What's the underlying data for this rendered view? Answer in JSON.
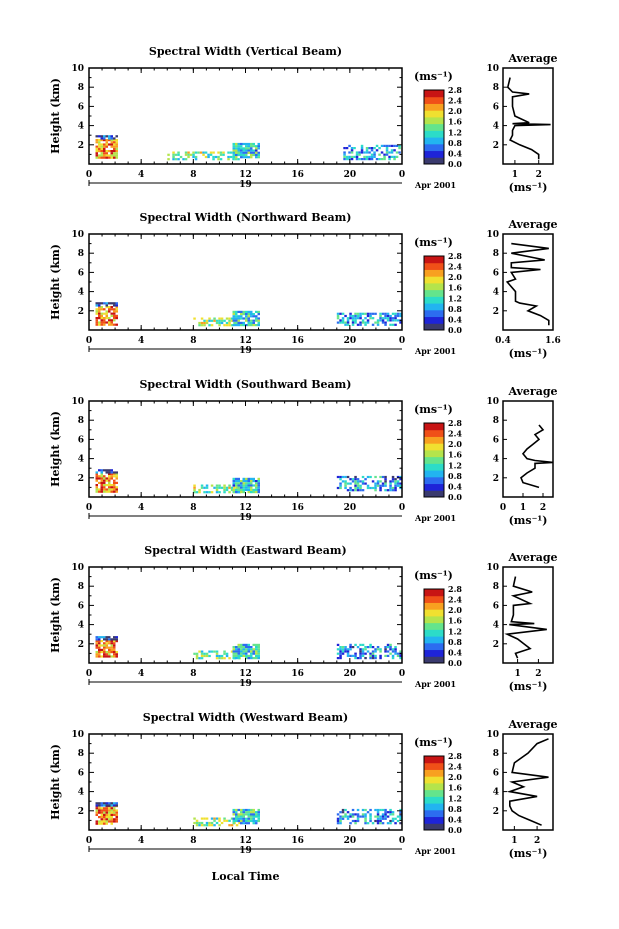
{
  "figure": {
    "xlabel": "Local Time",
    "date_label": "Apr 2001",
    "day_label": "19",
    "colorbar_unit": "(ms⁻¹)",
    "colorbar_ticks": [
      "0.0",
      "0.4",
      "0.8",
      "1.2",
      "1.6",
      "2.0",
      "2.4",
      "2.8"
    ],
    "average_title": "Average",
    "average_xlabel": "(ms⁻¹)"
  },
  "colors": {
    "colormap": [
      "#3a3a6e",
      "#1e24d8",
      "#2c6cf0",
      "#22b4f0",
      "#2cdcc8",
      "#64e48c",
      "#b4e44c",
      "#f0e030",
      "#f8a020",
      "#f05018",
      "#c81414"
    ]
  },
  "chart_data": [
    {
      "type": "heatmap",
      "title": "Spectral Width (Vertical Beam)",
      "ylabel": "Height (km)",
      "xlim": [
        0,
        24
      ],
      "ylim": [
        0,
        10
      ],
      "x_ticks": [
        "0",
        "4",
        "8",
        "12",
        "16",
        "20",
        "0"
      ],
      "y_ticks": [
        "2",
        "4",
        "6",
        "8",
        "10"
      ],
      "zlim": [
        0.0,
        2.8
      ],
      "patches": [
        {
          "x": [
            0.5,
            2.2
          ],
          "y": [
            0.6,
            2.6
          ],
          "value": 2.2
        },
        {
          "x": [
            0.5,
            2.2
          ],
          "y": [
            2.6,
            3.0
          ],
          "value": 0.3
        },
        {
          "x": [
            6.0,
            11.5
          ],
          "y": [
            0.6,
            1.3
          ],
          "value": 1.5
        },
        {
          "x": [
            11.0,
            13.0
          ],
          "y": [
            0.6,
            2.2
          ],
          "value": 1.1
        },
        {
          "x": [
            19.5,
            23.8
          ],
          "y": [
            0.6,
            2.0
          ],
          "value": 0.9
        }
      ],
      "average": {
        "xlim": [
          0.5,
          2.6
        ],
        "x_ticks": [
          "1",
          "2"
        ],
        "height": [
          0.5,
          1.0,
          1.5,
          2.0,
          2.5,
          3.0,
          3.5,
          4.0,
          4.1,
          4.2,
          4.3,
          5.0,
          6.0,
          7.0,
          7.3,
          7.5,
          8.0,
          9.0
        ],
        "value": [
          2.0,
          2.0,
          1.7,
          1.2,
          0.8,
          0.9,
          0.9,
          1.0,
          2.5,
          0.9,
          1.6,
          1.0,
          0.9,
          0.9,
          1.6,
          0.9,
          0.7,
          0.8
        ]
      }
    },
    {
      "type": "heatmap",
      "title": "Spectral Width (Northward Beam)",
      "ylabel": "Height (km)",
      "xlim": [
        0,
        24
      ],
      "ylim": [
        0,
        10
      ],
      "x_ticks": [
        "0",
        "4",
        "8",
        "12",
        "16",
        "20",
        "0"
      ],
      "y_ticks": [
        "2",
        "4",
        "6",
        "8",
        "10"
      ],
      "zlim": [
        0.0,
        2.8
      ],
      "patches": [
        {
          "x": [
            0.5,
            2.2
          ],
          "y": [
            0.6,
            2.5
          ],
          "value": 2.2
        },
        {
          "x": [
            0.5,
            2.2
          ],
          "y": [
            2.5,
            2.9
          ],
          "value": 0.3
        },
        {
          "x": [
            8.0,
            11.5
          ],
          "y": [
            0.6,
            1.3
          ],
          "value": 1.5
        },
        {
          "x": [
            11.0,
            13.0
          ],
          "y": [
            0.6,
            2.0
          ],
          "value": 1.1
        },
        {
          "x": [
            19.0,
            23.8
          ],
          "y": [
            0.6,
            1.8
          ],
          "value": 0.9
        }
      ],
      "average": {
        "xlim": [
          0.4,
          1.6
        ],
        "x_ticks": [
          "0.4",
          "1.6"
        ],
        "height": [
          0.5,
          1.0,
          1.5,
          2.0,
          2.5,
          2.8,
          3.0,
          4.0,
          5.0,
          5.3,
          6.0,
          6.3,
          6.5,
          7.0,
          7.3,
          8.0,
          8.5,
          9.0
        ],
        "value": [
          1.5,
          1.5,
          1.3,
          1.0,
          1.2,
          0.8,
          0.7,
          0.7,
          0.5,
          0.7,
          0.6,
          1.3,
          0.6,
          0.6,
          1.4,
          0.6,
          1.5,
          0.6
        ]
      }
    },
    {
      "type": "heatmap",
      "title": "Spectral Width (Southward Beam)",
      "ylabel": "Height (km)",
      "xlim": [
        0,
        24
      ],
      "ylim": [
        0,
        10
      ],
      "x_ticks": [
        "0",
        "4",
        "8",
        "12",
        "16",
        "20",
        "0"
      ],
      "y_ticks": [
        "2",
        "4",
        "6",
        "8",
        "10"
      ],
      "zlim": [
        0.0,
        2.8
      ],
      "patches": [
        {
          "x": [
            0.5,
            2.2
          ],
          "y": [
            0.6,
            2.5
          ],
          "value": 2.2
        },
        {
          "x": [
            0.5,
            2.2
          ],
          "y": [
            2.5,
            2.9
          ],
          "value": 0.3
        },
        {
          "x": [
            8.0,
            11.5
          ],
          "y": [
            0.6,
            1.3
          ],
          "value": 1.5
        },
        {
          "x": [
            11.0,
            13.0
          ],
          "y": [
            0.6,
            2.0
          ],
          "value": 1.1
        },
        {
          "x": [
            19.0,
            23.8
          ],
          "y": [
            0.6,
            2.2
          ],
          "value": 0.8
        }
      ],
      "average": {
        "xlim": [
          0,
          2.5
        ],
        "x_ticks": [
          "0",
          "1",
          "2"
        ],
        "height": [
          1.0,
          1.5,
          2.0,
          2.5,
          3.0,
          3.5,
          3.6,
          3.8,
          4.0,
          4.5,
          5.0,
          5.5,
          6.0,
          6.5,
          7.0,
          7.5
        ],
        "value": [
          1.8,
          1.0,
          0.9,
          1.2,
          1.6,
          1.6,
          2.5,
          1.6,
          1.2,
          1.0,
          1.2,
          1.5,
          1.8,
          1.6,
          2.0,
          1.8
        ]
      }
    },
    {
      "type": "heatmap",
      "title": "Spectral Width (Eastward Beam)",
      "ylabel": "Height (km)",
      "xlim": [
        0,
        24
      ],
      "ylim": [
        0,
        10
      ],
      "x_ticks": [
        "0",
        "4",
        "8",
        "12",
        "16",
        "20",
        "0"
      ],
      "y_ticks": [
        "2",
        "4",
        "6",
        "8",
        "10"
      ],
      "zlim": [
        0.0,
        2.8
      ],
      "patches": [
        {
          "x": [
            0.5,
            2.2
          ],
          "y": [
            0.6,
            2.4
          ],
          "value": 2.2
        },
        {
          "x": [
            0.5,
            2.2
          ],
          "y": [
            2.4,
            2.8
          ],
          "value": 0.3
        },
        {
          "x": [
            8.0,
            11.5
          ],
          "y": [
            0.6,
            1.3
          ],
          "value": 1.5
        },
        {
          "x": [
            11.0,
            13.0
          ],
          "y": [
            0.6,
            2.0
          ],
          "value": 1.1
        },
        {
          "x": [
            19.0,
            23.8
          ],
          "y": [
            0.6,
            2.0
          ],
          "value": 0.8
        }
      ],
      "average": {
        "xlim": [
          0.3,
          2.7
        ],
        "x_ticks": [
          "1",
          "2"
        ],
        "height": [
          0.5,
          1.0,
          1.5,
          2.0,
          2.5,
          3.0,
          3.5,
          4.0,
          4.1,
          4.3,
          5.0,
          6.0,
          6.2,
          7.0,
          7.4,
          8.0,
          9.0
        ],
        "value": [
          1.0,
          0.9,
          1.6,
          1.3,
          1.0,
          0.5,
          2.4,
          0.6,
          1.8,
          0.7,
          0.8,
          0.8,
          1.6,
          0.8,
          1.7,
          0.8,
          0.9
        ]
      }
    },
    {
      "type": "heatmap",
      "title": "Spectral Width (Westward Beam)",
      "ylabel": "Height (km)",
      "xlim": [
        0,
        24
      ],
      "ylim": [
        0,
        10
      ],
      "x_ticks": [
        "0",
        "4",
        "8",
        "12",
        "16",
        "20",
        "0"
      ],
      "y_ticks": [
        "2",
        "4",
        "6",
        "8",
        "10"
      ],
      "zlim": [
        0.0,
        2.8
      ],
      "patches": [
        {
          "x": [
            0.5,
            2.2
          ],
          "y": [
            0.6,
            2.6
          ],
          "value": 2.2
        },
        {
          "x": [
            0.5,
            2.2
          ],
          "y": [
            2.6,
            2.9
          ],
          "value": 0.3
        },
        {
          "x": [
            8.0,
            11.5
          ],
          "y": [
            0.6,
            1.3
          ],
          "value": 1.5
        },
        {
          "x": [
            11.0,
            13.0
          ],
          "y": [
            0.6,
            2.2
          ],
          "value": 1.1
        },
        {
          "x": [
            19.0,
            23.8
          ],
          "y": [
            0.6,
            2.2
          ],
          "value": 0.8
        }
      ],
      "average": {
        "xlim": [
          0.5,
          2.7
        ],
        "x_ticks": [
          "1",
          "2"
        ],
        "height": [
          0.5,
          1.0,
          1.5,
          2.0,
          2.5,
          3.0,
          3.5,
          4.0,
          4.5,
          5.0,
          5.5,
          6.0,
          7.0,
          8.0,
          9.0,
          9.5
        ],
        "value": [
          2.2,
          1.7,
          1.2,
          0.9,
          0.8,
          0.8,
          2.0,
          0.8,
          1.4,
          0.9,
          2.5,
          0.9,
          1.0,
          1.6,
          2.0,
          2.5
        ]
      }
    }
  ]
}
